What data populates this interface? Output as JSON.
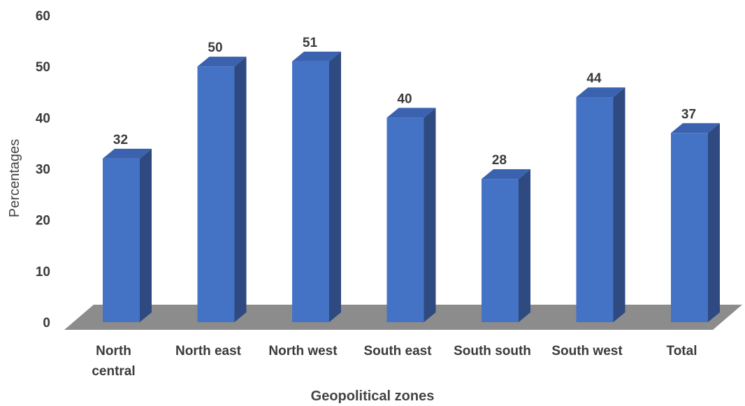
{
  "chart_data": {
    "type": "bar",
    "style": "3d-column",
    "categories": [
      "North central",
      "North east",
      "North west",
      "South east",
      "South south",
      "South west",
      "Total"
    ],
    "values": [
      32,
      50,
      51,
      40,
      28,
      44,
      37
    ],
    "data_labels": [
      "32",
      "50",
      "51",
      "40",
      "28",
      "44",
      "37"
    ],
    "title": "",
    "xlabel": "Geopolitical zones",
    "ylabel": "Percentages",
    "ylim": [
      0,
      60
    ],
    "yticks": [
      "0",
      "10",
      "20",
      "30",
      "40",
      "50",
      "60"
    ],
    "grid": false,
    "legend": "none",
    "colors": {
      "bar_front": "#4472C4",
      "bar_side": "#2E4A80",
      "bar_top": "#3B62AE",
      "floor": "#8C8C8C"
    }
  }
}
